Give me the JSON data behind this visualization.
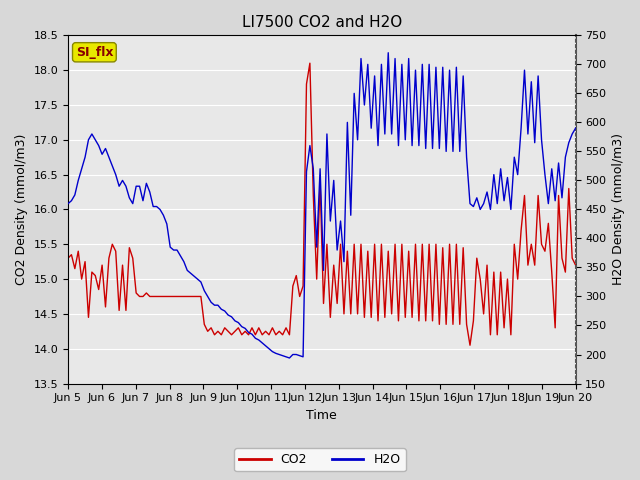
{
  "title": "LI7500 CO2 and H2O",
  "xlabel": "Time",
  "ylabel_left": "CO2 Density (mmol/m3)",
  "ylabel_right": "H2O Density (mmol/m3)",
  "ylim_left": [
    13.5,
    18.5
  ],
  "ylim_right": [
    150,
    750
  ],
  "xtick_labels": [
    "Jun 5",
    "Jun 6",
    "Jun 7",
    "Jun 8",
    "Jun 9",
    "Jun 10",
    "Jun 11",
    "Jun 12",
    "Jun 13",
    "Jun 14",
    "Jun 15",
    "Jun 16",
    "Jun 17",
    "Jun 18",
    "Jun 19",
    "Jun 20"
  ],
  "legend_labels": [
    "CO2",
    "H2O"
  ],
  "co2_color": "#cc0000",
  "h2o_color": "#0000cc",
  "background_color": "#d8d8d8",
  "plot_bg_color": "#e8e8e8",
  "annotation_text": "SI_flx",
  "annotation_bg": "#e8e800",
  "annotation_border": "#888800",
  "grid_color": "#ffffff",
  "title_fontsize": 11,
  "label_fontsize": 9,
  "tick_fontsize": 8,
  "yticks_left": [
    13.5,
    14.0,
    14.5,
    15.0,
    15.5,
    16.0,
    16.5,
    17.0,
    17.5,
    18.0,
    18.5
  ],
  "yticks_right": [
    150,
    200,
    250,
    300,
    350,
    400,
    450,
    500,
    550,
    600,
    650,
    700,
    750
  ],
  "co2_data": [
    15.3,
    15.35,
    15.15,
    15.4,
    15.0,
    15.25,
    14.45,
    15.1,
    15.05,
    14.85,
    15.2,
    14.6,
    15.3,
    15.5,
    15.4,
    14.55,
    15.2,
    14.55,
    15.45,
    15.3,
    14.8,
    14.75,
    14.75,
    14.8,
    14.75,
    14.75,
    14.75,
    14.75,
    14.75,
    14.75,
    14.75,
    14.75,
    14.75,
    14.75,
    14.75,
    14.75,
    14.75,
    14.75,
    14.75,
    14.75,
    14.35,
    14.25,
    14.3,
    14.2,
    14.25,
    14.2,
    14.3,
    14.25,
    14.2,
    14.25,
    14.3,
    14.2,
    14.25,
    14.2,
    14.3,
    14.2,
    14.3,
    14.2,
    14.25,
    14.2,
    14.3,
    14.2,
    14.25,
    14.2,
    14.3,
    14.2,
    14.9,
    15.05,
    14.75,
    14.9,
    17.8,
    18.1,
    16.2,
    15.0,
    16.4,
    14.65,
    15.5,
    14.45,
    15.2,
    14.65,
    15.5,
    14.5,
    15.4,
    14.5,
    15.5,
    14.5,
    15.5,
    14.45,
    15.4,
    14.45,
    15.5,
    14.4,
    15.5,
    14.45,
    15.4,
    14.5,
    15.5,
    14.4,
    15.5,
    14.45,
    15.4,
    14.45,
    15.5,
    14.4,
    15.5,
    14.4,
    15.5,
    14.4,
    15.5,
    14.35,
    15.45,
    14.35,
    15.5,
    14.35,
    15.5,
    14.35,
    15.45,
    14.35,
    14.05,
    14.4,
    15.3,
    15.0,
    14.5,
    15.2,
    14.2,
    15.1,
    14.2,
    15.1,
    14.3,
    15.0,
    14.2,
    15.5,
    15.0,
    15.7,
    16.2,
    15.2,
    15.5,
    15.2,
    16.2,
    15.5,
    15.4,
    15.8,
    15.1,
    14.3,
    16.2,
    15.3,
    15.1,
    16.3,
    15.3,
    15.2,
    14.2
  ],
  "h2o_data": [
    460,
    465,
    475,
    500,
    520,
    540,
    570,
    580,
    570,
    560,
    545,
    555,
    540,
    525,
    510,
    490,
    500,
    490,
    470,
    460,
    490,
    490,
    465,
    495,
    480,
    455,
    455,
    450,
    440,
    425,
    385,
    380,
    380,
    370,
    360,
    345,
    340,
    335,
    330,
    325,
    310,
    300,
    290,
    285,
    285,
    278,
    275,
    268,
    265,
    258,
    255,
    248,
    245,
    238,
    235,
    228,
    225,
    220,
    215,
    210,
    205,
    202,
    200,
    198,
    196,
    194,
    200,
    200,
    198,
    196,
    515,
    560,
    520,
    385,
    520,
    345,
    580,
    430,
    500,
    380,
    430,
    360,
    600,
    440,
    650,
    570,
    710,
    630,
    700,
    590,
    680,
    560,
    700,
    580,
    720,
    580,
    710,
    560,
    700,
    570,
    710,
    560,
    690,
    560,
    700,
    555,
    700,
    555,
    695,
    555,
    695,
    550,
    690,
    550,
    695,
    550,
    680,
    540,
    460,
    455,
    470,
    450,
    460,
    480,
    450,
    510,
    460,
    520,
    465,
    505,
    450,
    540,
    510,
    590,
    690,
    580,
    670,
    565,
    680,
    570,
    510,
    460,
    520,
    465,
    530,
    470,
    540,
    565,
    580,
    590
  ]
}
